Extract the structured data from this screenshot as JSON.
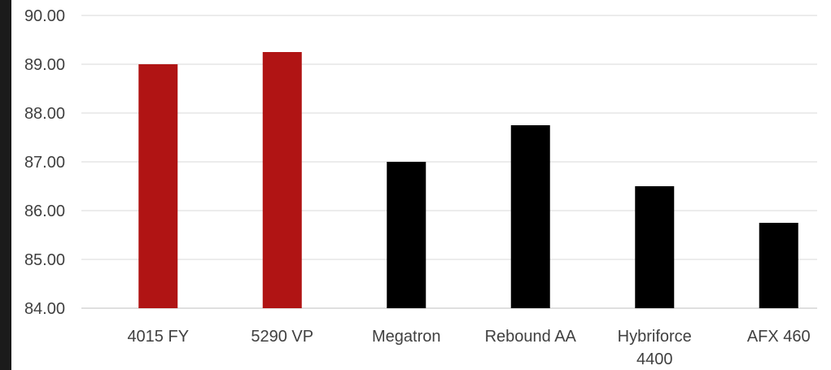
{
  "chart_data": {
    "type": "bar",
    "categories": [
      "4015 FY",
      "5290 VP",
      "Megatron",
      "Rebound AA",
      "Hybriforce 4400",
      "AFX 460"
    ],
    "category_lines": [
      [
        "4015 FY"
      ],
      [
        "5290 VP"
      ],
      [
        "Megatron"
      ],
      [
        "Rebound AA"
      ],
      [
        "Hybriforce",
        "4400"
      ],
      [
        "AFX 460"
      ]
    ],
    "values": [
      89.0,
      89.25,
      87.0,
      87.75,
      86.5,
      85.75
    ],
    "bar_colors": [
      "#b01414",
      "#b01414",
      "#000000",
      "#000000",
      "#000000",
      "#000000"
    ],
    "ylim": [
      84,
      90
    ],
    "yticks": [
      "84.00",
      "85.00",
      "86.00",
      "87.00",
      "88.00",
      "89.00",
      "90.00"
    ],
    "title": "",
    "xlabel": "",
    "ylabel": "",
    "grid": true,
    "legend": false
  },
  "colors": {
    "highlight": "#b01414",
    "default": "#000000",
    "grid": "#d9d9d9",
    "text": "#404040",
    "frame": "#1b1b1b"
  }
}
